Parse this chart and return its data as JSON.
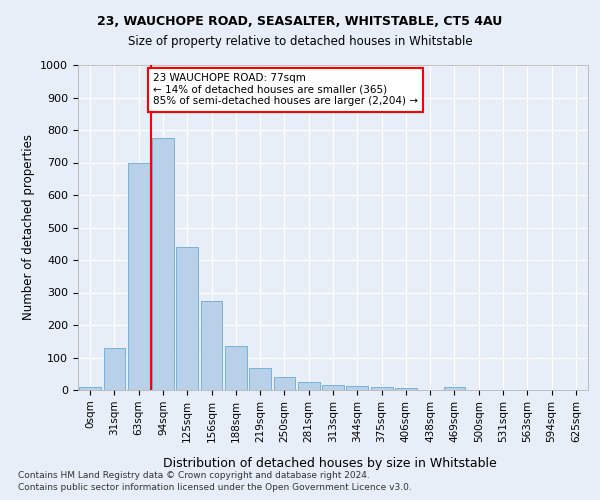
{
  "title1": "23, WAUCHOPE ROAD, SEASALTER, WHITSTABLE, CT5 4AU",
  "title2": "Size of property relative to detached houses in Whitstable",
  "xlabel": "Distribution of detached houses by size in Whitstable",
  "ylabel": "Number of detached properties",
  "bar_labels": [
    "0sqm",
    "31sqm",
    "63sqm",
    "94sqm",
    "125sqm",
    "156sqm",
    "188sqm",
    "219sqm",
    "250sqm",
    "281sqm",
    "313sqm",
    "344sqm",
    "375sqm",
    "406sqm",
    "438sqm",
    "469sqm",
    "500sqm",
    "531sqm",
    "563sqm",
    "594sqm",
    "625sqm"
  ],
  "bar_values": [
    8,
    128,
    700,
    775,
    440,
    275,
    135,
    68,
    40,
    25,
    15,
    12,
    10,
    5,
    0,
    10,
    0,
    0,
    0,
    0,
    0
  ],
  "bar_color": "#b8d0e8",
  "bar_edge_color": "#6aaad4",
  "vline_x": 2.5,
  "vline_color": "red",
  "annotation_text": "23 WAUCHOPE ROAD: 77sqm\n← 14% of detached houses are smaller (365)\n85% of semi-detached houses are larger (2,204) →",
  "annotation_box_color": "white",
  "annotation_box_edge": "red",
  "ylim": [
    0,
    1000
  ],
  "yticks": [
    0,
    100,
    200,
    300,
    400,
    500,
    600,
    700,
    800,
    900,
    1000
  ],
  "footer1": "Contains HM Land Registry data © Crown copyright and database right 2024.",
  "footer2": "Contains public sector information licensed under the Open Government Licence v3.0.",
  "bg_color": "#e8eef7",
  "axes_bg_color": "#e8eef7"
}
